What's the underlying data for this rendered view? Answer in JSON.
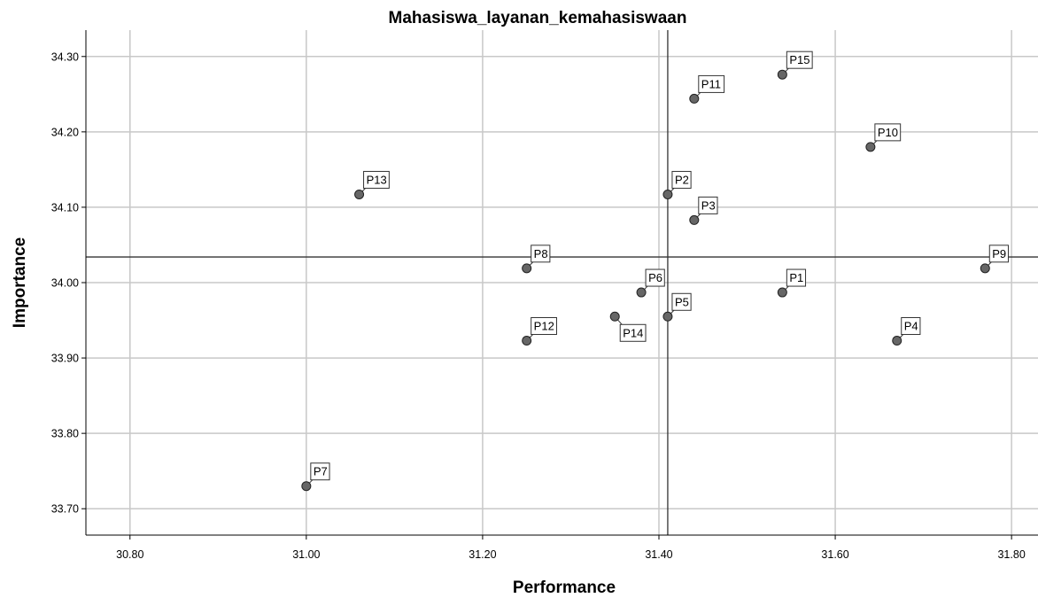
{
  "chart_data": {
    "type": "scatter",
    "title": "Mahasiswa_layanan_kemahasiswaan",
    "xlabel": "Performance",
    "ylabel": "Importance",
    "xlim": [
      30.75,
      31.83
    ],
    "ylim": [
      33.665,
      34.335
    ],
    "x_ticks": [
      30.8,
      31.0,
      31.2,
      31.4,
      31.6,
      31.8
    ],
    "x_tick_labels": [
      "30.80",
      "31.00",
      "31.20",
      "31.40",
      "31.60",
      "31.80"
    ],
    "y_ticks": [
      33.7,
      33.8,
      33.9,
      34.0,
      34.1,
      34.2,
      34.3
    ],
    "y_tick_labels": [
      "33.70",
      "33.80",
      "33.90",
      "34.00",
      "34.10",
      "34.20",
      "34.30"
    ],
    "grid": true,
    "reference_lines": {
      "x": 31.41,
      "y": 34.034
    },
    "marker_color": "#666666",
    "points": [
      {
        "label": "P1",
        "x": 31.54,
        "y": 33.987,
        "label_pos": "upper-right"
      },
      {
        "label": "P2",
        "x": 31.41,
        "y": 34.117,
        "label_pos": "upper-right"
      },
      {
        "label": "P3",
        "x": 31.44,
        "y": 34.083,
        "label_pos": "upper-right"
      },
      {
        "label": "P4",
        "x": 31.67,
        "y": 33.923,
        "label_pos": "upper-right"
      },
      {
        "label": "P5",
        "x": 31.41,
        "y": 33.955,
        "label_pos": "upper-right"
      },
      {
        "label": "P6",
        "x": 31.38,
        "y": 33.987,
        "label_pos": "upper-right"
      },
      {
        "label": "P7",
        "x": 31.0,
        "y": 33.73,
        "label_pos": "upper-right"
      },
      {
        "label": "P8",
        "x": 31.25,
        "y": 34.019,
        "label_pos": "upper-right"
      },
      {
        "label": "P9",
        "x": 31.77,
        "y": 34.019,
        "label_pos": "upper-right"
      },
      {
        "label": "P10",
        "x": 31.64,
        "y": 34.18,
        "label_pos": "upper-right"
      },
      {
        "label": "P11",
        "x": 31.44,
        "y": 34.244,
        "label_pos": "upper-right"
      },
      {
        "label": "P12",
        "x": 31.25,
        "y": 33.923,
        "label_pos": "upper-right"
      },
      {
        "label": "P13",
        "x": 31.06,
        "y": 34.117,
        "label_pos": "upper-right"
      },
      {
        "label": "P14",
        "x": 31.35,
        "y": 33.955,
        "label_pos": "lower-right"
      },
      {
        "label": "P15",
        "x": 31.54,
        "y": 34.276,
        "label_pos": "upper-right"
      }
    ]
  }
}
